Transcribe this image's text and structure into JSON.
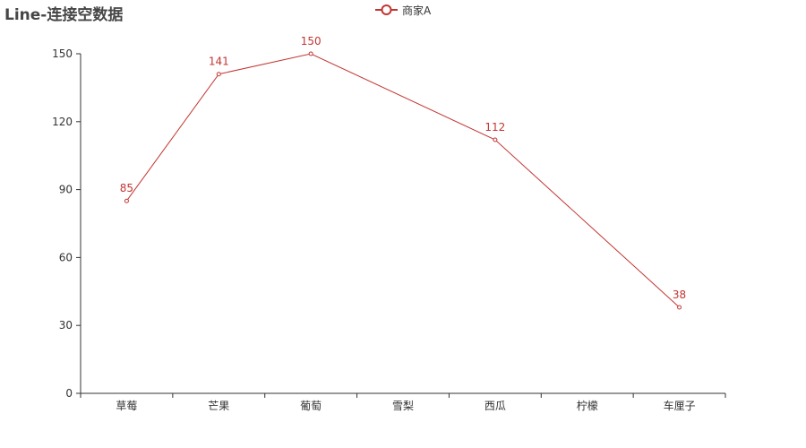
{
  "title": "Line-连接空数据",
  "colors": {
    "series": "#c23531",
    "axis": "#333333",
    "label_text": "#333333",
    "title": "#464646"
  },
  "chart_data": {
    "type": "line",
    "title": "Line-连接空数据",
    "categories": [
      "草莓",
      "芒果",
      "葡萄",
      "雪梨",
      "西瓜",
      "柠檬",
      "车厘子"
    ],
    "series": [
      {
        "name": "商家A",
        "values": [
          85,
          141,
          150,
          null,
          112,
          null,
          38
        ],
        "connect_nulls": true,
        "show_labels": true,
        "symbol": "empty-circle"
      }
    ],
    "yticks": [
      0,
      30,
      60,
      90,
      120,
      150
    ],
    "ylim": [
      0,
      150
    ],
    "xlabel": "",
    "ylabel": "",
    "grid": false,
    "legend_position": "top-center"
  }
}
